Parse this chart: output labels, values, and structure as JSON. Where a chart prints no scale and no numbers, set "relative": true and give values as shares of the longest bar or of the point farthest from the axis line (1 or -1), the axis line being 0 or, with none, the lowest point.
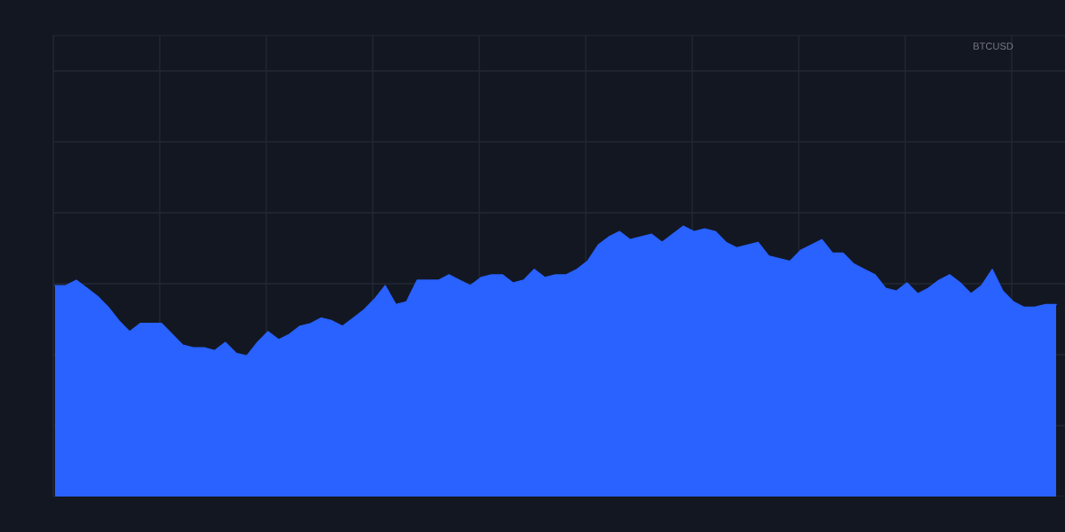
{
  "chart_data": {
    "type": "area",
    "relative": true,
    "grid": true,
    "tick_labels": false,
    "annotations": [
      "BTCUSD"
    ],
    "categories": [
      null,
      null,
      null,
      null,
      null,
      null,
      null,
      null,
      null,
      null,
      null,
      null,
      null,
      null,
      null,
      null,
      null,
      null,
      null,
      null,
      null,
      null,
      null,
      null,
      null,
      null,
      null,
      null,
      null,
      null,
      null,
      null,
      null,
      null,
      null,
      null,
      null,
      null,
      null,
      null,
      null,
      null,
      null,
      null,
      null,
      null,
      null,
      null,
      null,
      null,
      null,
      null,
      null,
      null,
      null,
      null,
      null,
      null,
      null,
      null,
      null,
      null,
      null,
      null,
      null,
      null,
      null,
      null,
      null,
      null,
      null,
      null,
      null,
      null,
      null,
      null,
      null,
      null,
      null,
      null,
      null,
      null,
      null,
      null,
      null,
      null,
      null,
      null,
      null,
      null,
      null,
      null,
      null,
      null,
      null
    ],
    "series": [
      {
        "color": "#2962ff",
        "values": [
          0.78,
          0.78,
          0.8,
          0.77,
          0.74,
          0.7,
          0.65,
          0.61,
          0.64,
          0.64,
          0.64,
          0.6,
          0.56,
          0.55,
          0.55,
          0.54,
          0.57,
          0.53,
          0.52,
          0.57,
          0.61,
          0.58,
          0.6,
          0.63,
          0.64,
          0.66,
          0.65,
          0.63,
          0.66,
          0.69,
          0.73,
          0.78,
          0.71,
          0.72,
          0.8,
          0.8,
          0.8,
          0.82,
          0.8,
          0.78,
          0.81,
          0.82,
          0.82,
          0.79,
          0.8,
          0.84,
          0.81,
          0.82,
          0.82,
          0.84,
          0.87,
          0.93,
          0.96,
          0.98,
          0.95,
          0.96,
          0.97,
          0.94,
          0.97,
          1.0,
          0.98,
          0.99,
          0.98,
          0.94,
          0.92,
          0.93,
          0.94,
          0.89,
          0.88,
          0.87,
          0.91,
          0.93,
          0.95,
          0.9,
          0.9,
          0.86,
          0.84,
          0.82,
          0.77,
          0.76,
          0.79,
          0.75,
          0.77,
          0.8,
          0.82,
          0.79,
          0.75,
          0.78,
          0.84,
          0.76,
          0.72,
          0.7,
          0.7,
          0.71,
          0.71
        ]
      }
    ]
  }
}
